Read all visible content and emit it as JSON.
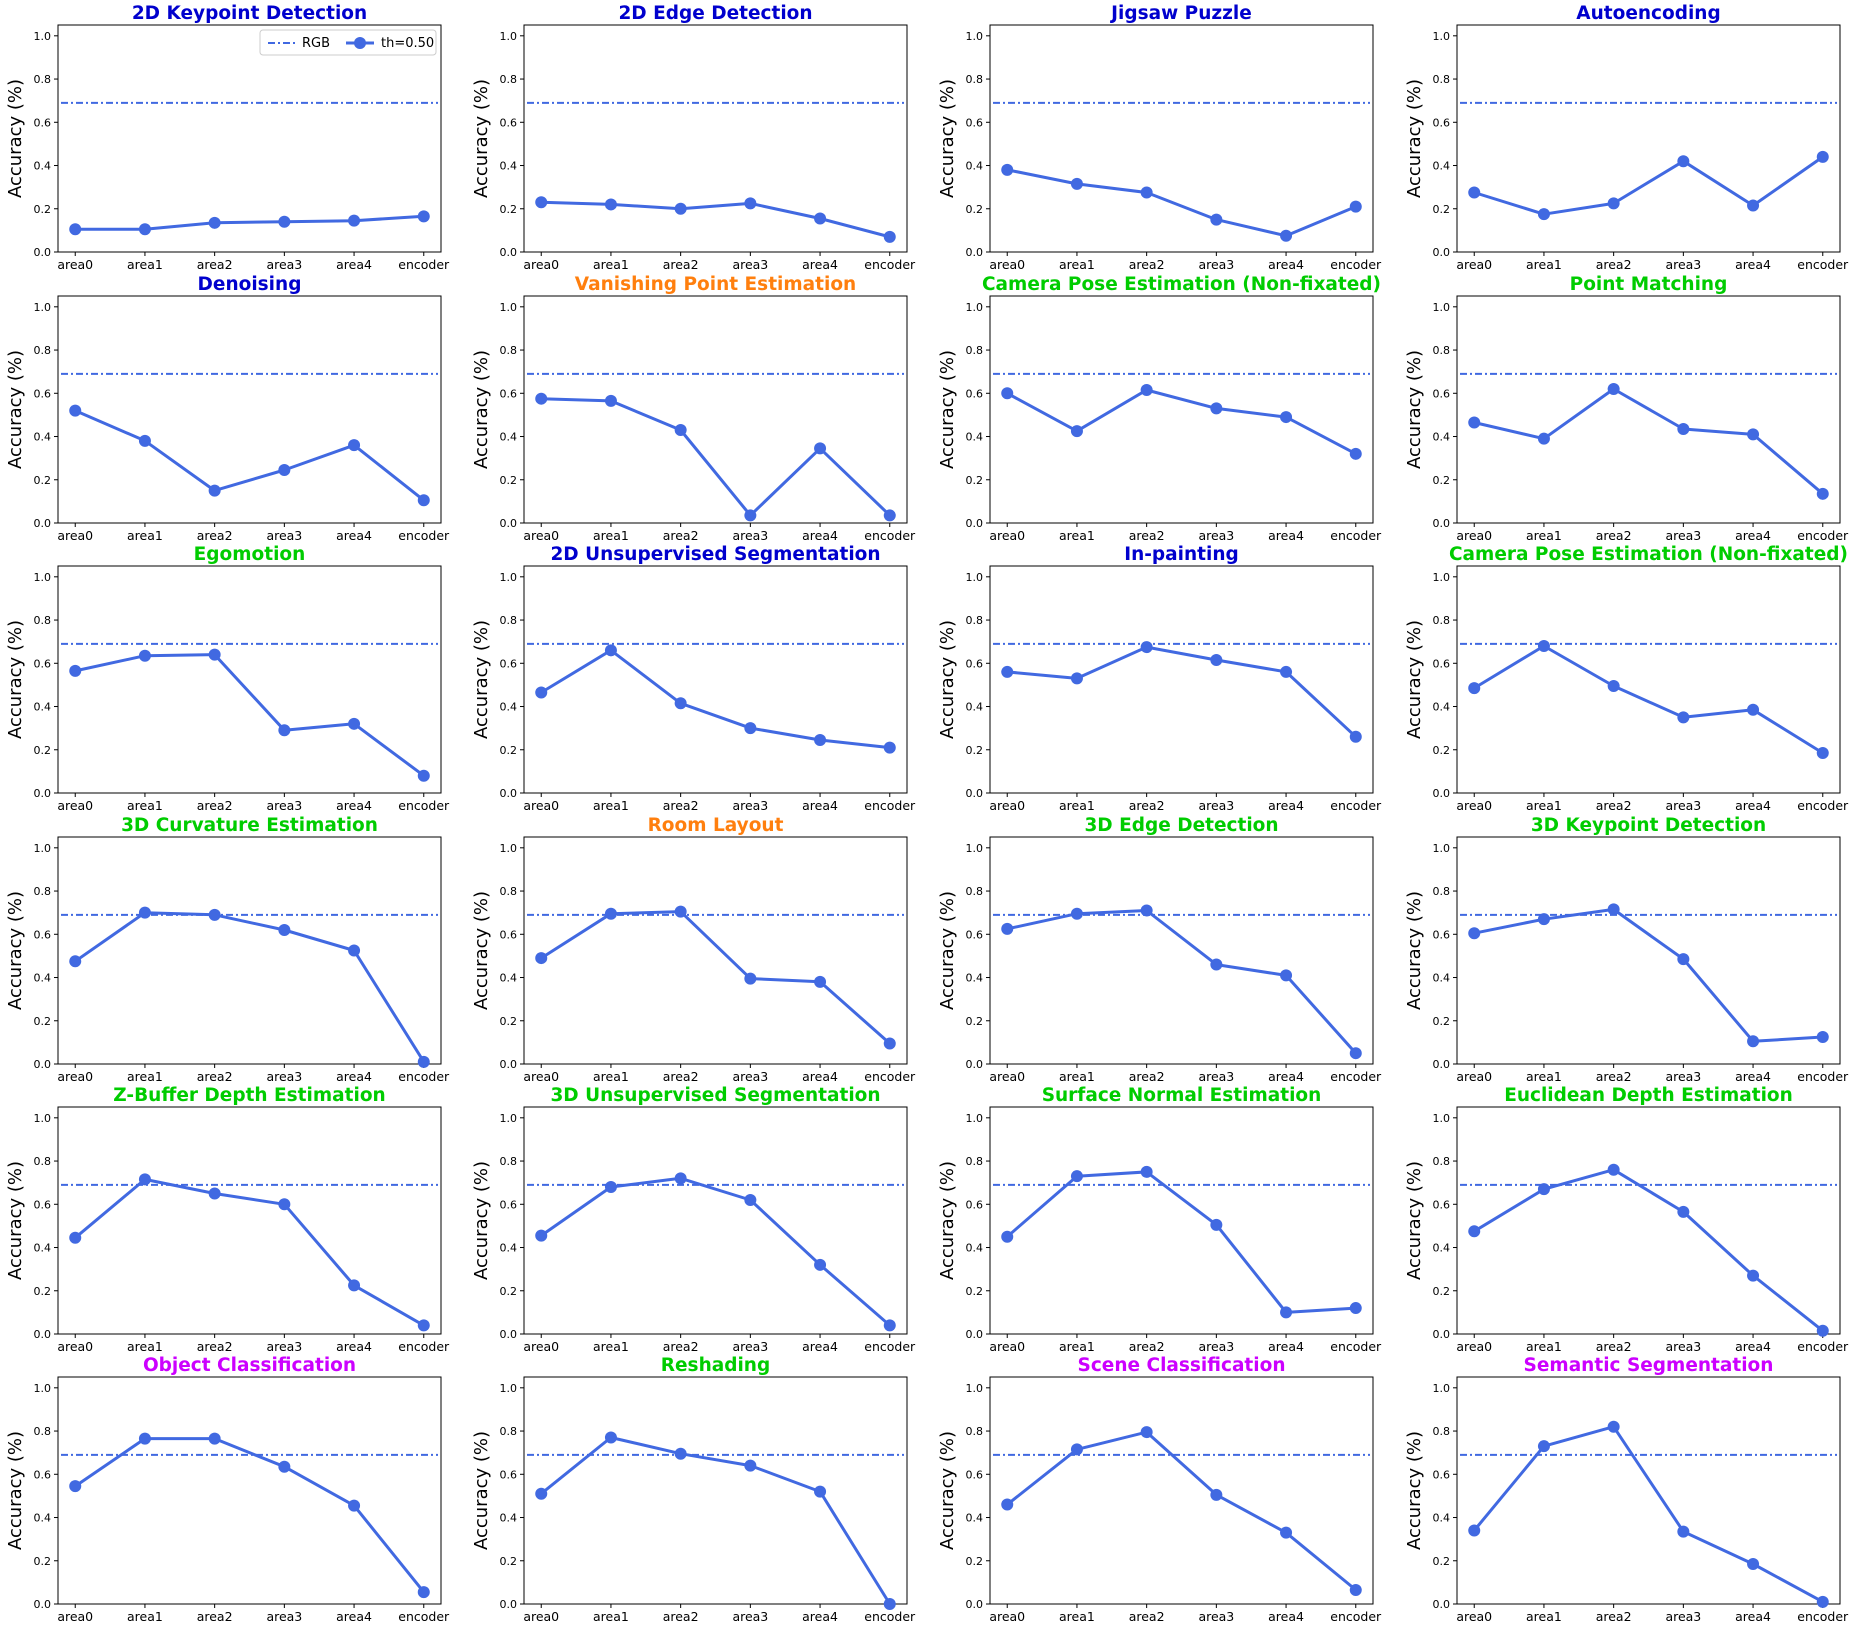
{
  "figure": {
    "ylabel": "Accuracy (%)",
    "legend": {
      "placement": "top-right",
      "entries": [
        {
          "label": "RGB",
          "style": "dash-dot"
        },
        {
          "label": "th=0.50",
          "style": "line-marker"
        }
      ]
    },
    "colors": {
      "series": "#4169e1",
      "title_blue": "#0000cd",
      "title_orange": "#ff7f0e",
      "title_green": "#00cc00",
      "title_magenta": "#cc00ff"
    }
  },
  "chart_data": [
    {
      "type": "line",
      "title": "2D Keypoint Detection",
      "title_color": "#0000cd",
      "ylabel": "Accuracy (%)",
      "ylim": [
        0,
        1.05
      ],
      "yticks": [
        "0.0",
        "0.2",
        "0.4",
        "0.6",
        "0.8",
        "1.0"
      ],
      "categories": [
        "area0",
        "area1",
        "area2",
        "area3",
        "area4",
        "encoder"
      ],
      "series": [
        {
          "name": "th=0.50",
          "values": [
            0.105,
            0.105,
            0.135,
            0.14,
            0.145,
            0.165
          ]
        }
      ],
      "reference": {
        "name": "RGB",
        "value": 0.69
      },
      "legend": true
    },
    {
      "type": "line",
      "title": "2D Edge Detection",
      "title_color": "#0000cd",
      "ylabel": "Accuracy (%)",
      "ylim": [
        0,
        1.05
      ],
      "yticks": [
        "0.0",
        "0.2",
        "0.4",
        "0.6",
        "0.8",
        "1.0"
      ],
      "categories": [
        "area0",
        "area1",
        "area2",
        "area3",
        "area4",
        "encoder"
      ],
      "series": [
        {
          "name": "th=0.50",
          "values": [
            0.23,
            0.22,
            0.2,
            0.225,
            0.155,
            0.07
          ]
        }
      ],
      "reference": {
        "name": "RGB",
        "value": 0.69
      }
    },
    {
      "type": "line",
      "title": "Jigsaw Puzzle",
      "title_color": "#0000cd",
      "ylabel": "Accuracy (%)",
      "ylim": [
        0,
        1.05
      ],
      "yticks": [
        "0.0",
        "0.2",
        "0.4",
        "0.6",
        "0.8",
        "1.0"
      ],
      "categories": [
        "area0",
        "area1",
        "area2",
        "area3",
        "area4",
        "encoder"
      ],
      "series": [
        {
          "name": "th=0.50",
          "values": [
            0.38,
            0.315,
            0.275,
            0.15,
            0.075,
            0.21
          ]
        }
      ],
      "reference": {
        "name": "RGB",
        "value": 0.69
      }
    },
    {
      "type": "line",
      "title": "Autoencoding",
      "title_color": "#0000cd",
      "ylabel": "Accuracy (%)",
      "ylim": [
        0,
        1.05
      ],
      "yticks": [
        "0.0",
        "0.2",
        "0.4",
        "0.6",
        "0.8",
        "1.0"
      ],
      "categories": [
        "area0",
        "area1",
        "area2",
        "area3",
        "area4",
        "encoder"
      ],
      "series": [
        {
          "name": "th=0.50",
          "values": [
            0.275,
            0.175,
            0.225,
            0.42,
            0.215,
            0.44
          ]
        }
      ],
      "reference": {
        "name": "RGB",
        "value": 0.69
      }
    },
    {
      "type": "line",
      "title": "Denoising",
      "title_color": "#0000cd",
      "ylabel": "Accuracy (%)",
      "ylim": [
        0,
        1.05
      ],
      "yticks": [
        "0.0",
        "0.2",
        "0.4",
        "0.6",
        "0.8",
        "1.0"
      ],
      "categories": [
        "area0",
        "area1",
        "area2",
        "area3",
        "area4",
        "encoder"
      ],
      "series": [
        {
          "name": "th=0.50",
          "values": [
            0.52,
            0.38,
            0.15,
            0.245,
            0.36,
            0.105
          ]
        }
      ],
      "reference": {
        "name": "RGB",
        "value": 0.69
      }
    },
    {
      "type": "line",
      "title": "Vanishing Point Estimation",
      "title_color": "#ff7f0e",
      "ylabel": "Accuracy (%)",
      "ylim": [
        0,
        1.05
      ],
      "yticks": [
        "0.0",
        "0.2",
        "0.4",
        "0.6",
        "0.8",
        "1.0"
      ],
      "categories": [
        "area0",
        "area1",
        "area2",
        "area3",
        "area4",
        "encoder"
      ],
      "series": [
        {
          "name": "th=0.50",
          "values": [
            0.575,
            0.565,
            0.43,
            0.035,
            0.345,
            0.035
          ]
        }
      ],
      "reference": {
        "name": "RGB",
        "value": 0.69
      }
    },
    {
      "type": "line",
      "title": "Camera Pose Estimation (Non-fixated)",
      "title_color": "#00cc00",
      "ylabel": "Accuracy (%)",
      "ylim": [
        0,
        1.05
      ],
      "yticks": [
        "0.0",
        "0.2",
        "0.4",
        "0.6",
        "0.8",
        "1.0"
      ],
      "categories": [
        "area0",
        "area1",
        "area2",
        "area3",
        "area4",
        "encoder"
      ],
      "series": [
        {
          "name": "th=0.50",
          "values": [
            0.6,
            0.425,
            0.615,
            0.53,
            0.49,
            0.32
          ]
        }
      ],
      "reference": {
        "name": "RGB",
        "value": 0.69
      }
    },
    {
      "type": "line",
      "title": "Point Matching",
      "title_color": "#00cc00",
      "ylabel": "Accuracy (%)",
      "ylim": [
        0,
        1.05
      ],
      "yticks": [
        "0.0",
        "0.2",
        "0.4",
        "0.6",
        "0.8",
        "1.0"
      ],
      "categories": [
        "area0",
        "area1",
        "area2",
        "area3",
        "area4",
        "encoder"
      ],
      "series": [
        {
          "name": "th=0.50",
          "values": [
            0.465,
            0.39,
            0.62,
            0.435,
            0.41,
            0.135
          ]
        }
      ],
      "reference": {
        "name": "RGB",
        "value": 0.69
      }
    },
    {
      "type": "line",
      "title": "Egomotion",
      "title_color": "#00cc00",
      "ylabel": "Accuracy (%)",
      "ylim": [
        0,
        1.05
      ],
      "yticks": [
        "0.0",
        "0.2",
        "0.4",
        "0.6",
        "0.8",
        "1.0"
      ],
      "categories": [
        "area0",
        "area1",
        "area2",
        "area3",
        "area4",
        "encoder"
      ],
      "series": [
        {
          "name": "th=0.50",
          "values": [
            0.565,
            0.635,
            0.64,
            0.29,
            0.32,
            0.08
          ]
        }
      ],
      "reference": {
        "name": "RGB",
        "value": 0.69
      }
    },
    {
      "type": "line",
      "title": "2D Unsupervised Segmentation",
      "title_color": "#0000cd",
      "ylabel": "Accuracy (%)",
      "ylim": [
        0,
        1.05
      ],
      "yticks": [
        "0.0",
        "0.2",
        "0.4",
        "0.6",
        "0.8",
        "1.0"
      ],
      "categories": [
        "area0",
        "area1",
        "area2",
        "area3",
        "area4",
        "encoder"
      ],
      "series": [
        {
          "name": "th=0.50",
          "values": [
            0.465,
            0.66,
            0.415,
            0.3,
            0.245,
            0.21
          ]
        }
      ],
      "reference": {
        "name": "RGB",
        "value": 0.69
      }
    },
    {
      "type": "line",
      "title": "In-painting",
      "title_color": "#0000cd",
      "ylabel": "Accuracy (%)",
      "ylim": [
        0,
        1.05
      ],
      "yticks": [
        "0.0",
        "0.2",
        "0.4",
        "0.6",
        "0.8",
        "1.0"
      ],
      "categories": [
        "area0",
        "area1",
        "area2",
        "area3",
        "area4",
        "encoder"
      ],
      "series": [
        {
          "name": "th=0.50",
          "values": [
            0.56,
            0.53,
            0.675,
            0.615,
            0.56,
            0.26
          ]
        }
      ],
      "reference": {
        "name": "RGB",
        "value": 0.69
      }
    },
    {
      "type": "line",
      "title": "Camera Pose Estimation (Non-fixated)",
      "title_color": "#00cc00",
      "ylabel": "Accuracy (%)",
      "ylim": [
        0,
        1.05
      ],
      "yticks": [
        "0.0",
        "0.2",
        "0.4",
        "0.6",
        "0.8",
        "1.0"
      ],
      "categories": [
        "area0",
        "area1",
        "area2",
        "area3",
        "area4",
        "encoder"
      ],
      "series": [
        {
          "name": "th=0.50",
          "values": [
            0.485,
            0.68,
            0.495,
            0.35,
            0.385,
            0.185
          ]
        }
      ],
      "reference": {
        "name": "RGB",
        "value": 0.69
      }
    },
    {
      "type": "line",
      "title": "3D Curvature Estimation",
      "title_color": "#00cc00",
      "ylabel": "Accuracy (%)",
      "ylim": [
        0,
        1.05
      ],
      "yticks": [
        "0.0",
        "0.2",
        "0.4",
        "0.6",
        "0.8",
        "1.0"
      ],
      "categories": [
        "area0",
        "area1",
        "area2",
        "area3",
        "area4",
        "encoder"
      ],
      "series": [
        {
          "name": "th=0.50",
          "values": [
            0.475,
            0.7,
            0.69,
            0.62,
            0.525,
            0.01
          ]
        }
      ],
      "reference": {
        "name": "RGB",
        "value": 0.69
      }
    },
    {
      "type": "line",
      "title": "Room Layout",
      "title_color": "#ff7f0e",
      "ylabel": "Accuracy (%)",
      "ylim": [
        0,
        1.05
      ],
      "yticks": [
        "0.0",
        "0.2",
        "0.4",
        "0.6",
        "0.8",
        "1.0"
      ],
      "categories": [
        "area0",
        "area1",
        "area2",
        "area3",
        "area4",
        "encoder"
      ],
      "series": [
        {
          "name": "th=0.50",
          "values": [
            0.49,
            0.695,
            0.705,
            0.395,
            0.38,
            0.095
          ]
        }
      ],
      "reference": {
        "name": "RGB",
        "value": 0.69
      }
    },
    {
      "type": "line",
      "title": "3D Edge Detection",
      "title_color": "#00cc00",
      "ylabel": "Accuracy (%)",
      "ylim": [
        0,
        1.05
      ],
      "yticks": [
        "0.0",
        "0.2",
        "0.4",
        "0.6",
        "0.8",
        "1.0"
      ],
      "categories": [
        "area0",
        "area1",
        "area2",
        "area3",
        "area4",
        "encoder"
      ],
      "series": [
        {
          "name": "th=0.50",
          "values": [
            0.625,
            0.695,
            0.71,
            0.46,
            0.41,
            0.05
          ]
        }
      ],
      "reference": {
        "name": "RGB",
        "value": 0.69
      }
    },
    {
      "type": "line",
      "title": "3D Keypoint Detection",
      "title_color": "#00cc00",
      "ylabel": "Accuracy (%)",
      "ylim": [
        0,
        1.05
      ],
      "yticks": [
        "0.0",
        "0.2",
        "0.4",
        "0.6",
        "0.8",
        "1.0"
      ],
      "categories": [
        "area0",
        "area1",
        "area2",
        "area3",
        "area4",
        "encoder"
      ],
      "series": [
        {
          "name": "th=0.50",
          "values": [
            0.605,
            0.67,
            0.715,
            0.485,
            0.105,
            0.125
          ]
        }
      ],
      "reference": {
        "name": "RGB",
        "value": 0.69
      }
    },
    {
      "type": "line",
      "title": "Z-Buffer Depth Estimation",
      "title_color": "#00cc00",
      "ylabel": "Accuracy (%)",
      "ylim": [
        0,
        1.05
      ],
      "yticks": [
        "0.0",
        "0.2",
        "0.4",
        "0.6",
        "0.8",
        "1.0"
      ],
      "categories": [
        "area0",
        "area1",
        "area2",
        "area3",
        "area4",
        "encoder"
      ],
      "series": [
        {
          "name": "th=0.50",
          "values": [
            0.445,
            0.715,
            0.65,
            0.6,
            0.225,
            0.04
          ]
        }
      ],
      "reference": {
        "name": "RGB",
        "value": 0.69
      }
    },
    {
      "type": "line",
      "title": "3D Unsupervised Segmentation",
      "title_color": "#00cc00",
      "ylabel": "Accuracy (%)",
      "ylim": [
        0,
        1.05
      ],
      "yticks": [
        "0.0",
        "0.2",
        "0.4",
        "0.6",
        "0.8",
        "1.0"
      ],
      "categories": [
        "area0",
        "area1",
        "area2",
        "area3",
        "area4",
        "encoder"
      ],
      "series": [
        {
          "name": "th=0.50",
          "values": [
            0.455,
            0.68,
            0.72,
            0.62,
            0.32,
            0.04
          ]
        }
      ],
      "reference": {
        "name": "RGB",
        "value": 0.69
      }
    },
    {
      "type": "line",
      "title": "Surface Normal Estimation",
      "title_color": "#00cc00",
      "ylabel": "Accuracy (%)",
      "ylim": [
        0,
        1.05
      ],
      "yticks": [
        "0.0",
        "0.2",
        "0.4",
        "0.6",
        "0.8",
        "1.0"
      ],
      "categories": [
        "area0",
        "area1",
        "area2",
        "area3",
        "area4",
        "encoder"
      ],
      "series": [
        {
          "name": "th=0.50",
          "values": [
            0.45,
            0.73,
            0.75,
            0.505,
            0.1,
            0.12
          ]
        }
      ],
      "reference": {
        "name": "RGB",
        "value": 0.69
      }
    },
    {
      "type": "line",
      "title": "Euclidean Depth Estimation",
      "title_color": "#00cc00",
      "ylabel": "Accuracy (%)",
      "ylim": [
        0,
        1.05
      ],
      "yticks": [
        "0.0",
        "0.2",
        "0.4",
        "0.6",
        "0.8",
        "1.0"
      ],
      "categories": [
        "area0",
        "area1",
        "area2",
        "area3",
        "area4",
        "encoder"
      ],
      "series": [
        {
          "name": "th=0.50",
          "values": [
            0.475,
            0.67,
            0.76,
            0.565,
            0.27,
            0.015
          ]
        }
      ],
      "reference": {
        "name": "RGB",
        "value": 0.69
      }
    },
    {
      "type": "line",
      "title": "Object Classification",
      "title_color": "#cc00ff",
      "ylabel": "Accuracy (%)",
      "ylim": [
        0,
        1.05
      ],
      "yticks": [
        "0.0",
        "0.2",
        "0.4",
        "0.6",
        "0.8",
        "1.0"
      ],
      "categories": [
        "area0",
        "area1",
        "area2",
        "area3",
        "area4",
        "encoder"
      ],
      "series": [
        {
          "name": "th=0.50",
          "values": [
            0.545,
            0.765,
            0.765,
            0.635,
            0.455,
            0.055
          ]
        }
      ],
      "reference": {
        "name": "RGB",
        "value": 0.69
      }
    },
    {
      "type": "line",
      "title": "Reshading",
      "title_color": "#00cc00",
      "ylabel": "Accuracy (%)",
      "ylim": [
        0,
        1.05
      ],
      "yticks": [
        "0.0",
        "0.2",
        "0.4",
        "0.6",
        "0.8",
        "1.0"
      ],
      "categories": [
        "area0",
        "area1",
        "area2",
        "area3",
        "area4",
        "encoder"
      ],
      "series": [
        {
          "name": "th=0.50",
          "values": [
            0.51,
            0.77,
            0.695,
            0.64,
            0.52,
            0.0
          ]
        }
      ],
      "reference": {
        "name": "RGB",
        "value": 0.69
      }
    },
    {
      "type": "line",
      "title": "Scene Classification",
      "title_color": "#cc00ff",
      "ylabel": "Accuracy (%)",
      "ylim": [
        0,
        1.05
      ],
      "yticks": [
        "0.0",
        "0.2",
        "0.4",
        "0.6",
        "0.8",
        "1.0"
      ],
      "categories": [
        "area0",
        "area1",
        "area2",
        "area3",
        "area4",
        "encoder"
      ],
      "series": [
        {
          "name": "th=0.50",
          "values": [
            0.46,
            0.715,
            0.795,
            0.505,
            0.33,
            0.065
          ]
        }
      ],
      "reference": {
        "name": "RGB",
        "value": 0.69
      }
    },
    {
      "type": "line",
      "title": "Semantic Segmentation",
      "title_color": "#cc00ff",
      "ylabel": "Accuracy (%)",
      "ylim": [
        0,
        1.05
      ],
      "yticks": [
        "0.0",
        "0.2",
        "0.4",
        "0.6",
        "0.8",
        "1.0"
      ],
      "categories": [
        "area0",
        "area1",
        "area2",
        "area3",
        "area4",
        "encoder"
      ],
      "series": [
        {
          "name": "th=0.50",
          "values": [
            0.34,
            0.73,
            0.82,
            0.335,
            0.185,
            0.01
          ]
        }
      ],
      "reference": {
        "name": "RGB",
        "value": 0.69
      }
    }
  ]
}
